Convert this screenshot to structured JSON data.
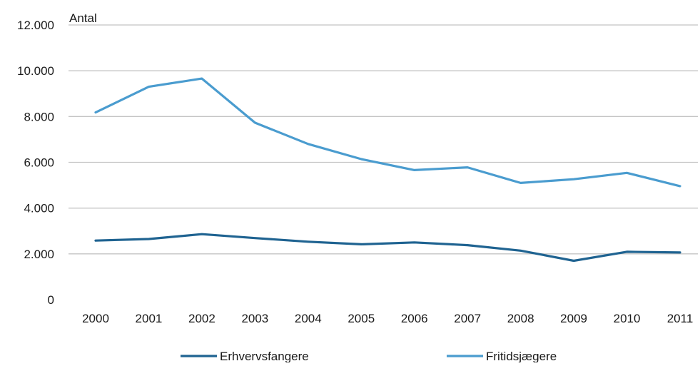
{
  "chart_data": {
    "type": "line",
    "ylabel": "Antal",
    "x": [
      "2000",
      "2001",
      "2002",
      "2003",
      "2004",
      "2005",
      "2006",
      "2007",
      "2008",
      "2009",
      "2010",
      "2011"
    ],
    "ylim": [
      0,
      12000
    ],
    "yticks": [
      0,
      2000,
      4000,
      6000,
      8000,
      10000,
      12000
    ],
    "ytick_labels": [
      "0",
      "2.000",
      "4.000",
      "6.000",
      "8.000",
      "10.000",
      "12.000"
    ],
    "grid": "horizontal",
    "legend_position": "bottom",
    "series": [
      {
        "name": "Erhvervsfangere",
        "color": "#1f6391",
        "values": [
          2580,
          2650,
          2860,
          2690,
          2530,
          2420,
          2500,
          2380,
          2140,
          1700,
          2090,
          2060
        ]
      },
      {
        "name": "Fritidsjægere",
        "color": "#4a9ccf",
        "values": [
          8180,
          9300,
          9660,
          7730,
          6800,
          6140,
          5660,
          5780,
          5100,
          5260,
          5540,
          4960
        ]
      }
    ]
  }
}
